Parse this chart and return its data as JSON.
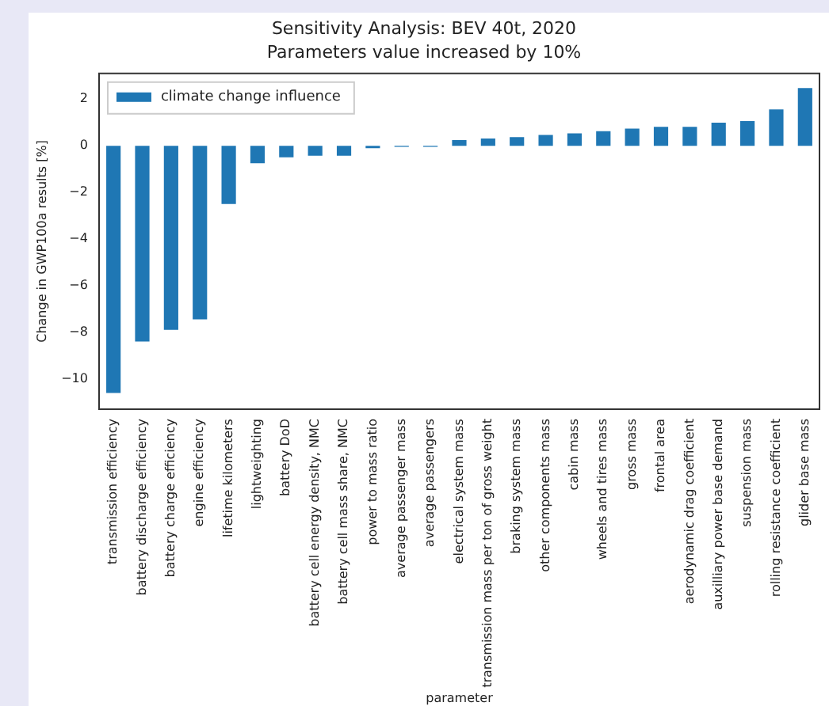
{
  "chart_data": {
    "type": "bar",
    "title": "Sensitivity Analysis: BEV 40t, 2020",
    "subtitle": "Parameters value increased by 10%",
    "xlabel": "parameter",
    "ylabel": "Change in GWP100a results [%]",
    "categories": [
      "transmission efficiency",
      "battery discharge efficiency",
      "battery charge efficiency",
      "engine efficiency",
      "lifetime kilometers",
      "lightweighting",
      "battery DoD",
      "battery cell energy density, NMC",
      "battery cell mass share, NMC",
      "power to mass ratio",
      "average passenger mass",
      "average passengers",
      "electrical system mass",
      "transmission mass per ton of gross weight",
      "braking system mass",
      "other components mass",
      "cabin mass",
      "wheels and tires mass",
      "gross mass",
      "frontal area",
      "aerodynamic drag coefficient",
      "auxilliary power base demand",
      "suspension mass",
      "rolling resistance coefficient",
      "glider base mass"
    ],
    "series": [
      {
        "name": "climate change influence",
        "color": "#1f77b4",
        "values": [
          -10.6,
          -8.4,
          -7.9,
          -7.45,
          -2.5,
          -0.75,
          -0.5,
          -0.43,
          -0.43,
          -0.11,
          -0.05,
          -0.05,
          0.24,
          0.31,
          0.37,
          0.46,
          0.53,
          0.62,
          0.73,
          0.81,
          0.81,
          0.99,
          1.06,
          1.56,
          2.47
        ]
      }
    ],
    "ylim": [
      -11.3,
      3.1
    ],
    "yticks": [
      -10,
      -8,
      -6,
      -4,
      -2,
      0,
      2
    ],
    "grid": false,
    "legend": "top left"
  }
}
